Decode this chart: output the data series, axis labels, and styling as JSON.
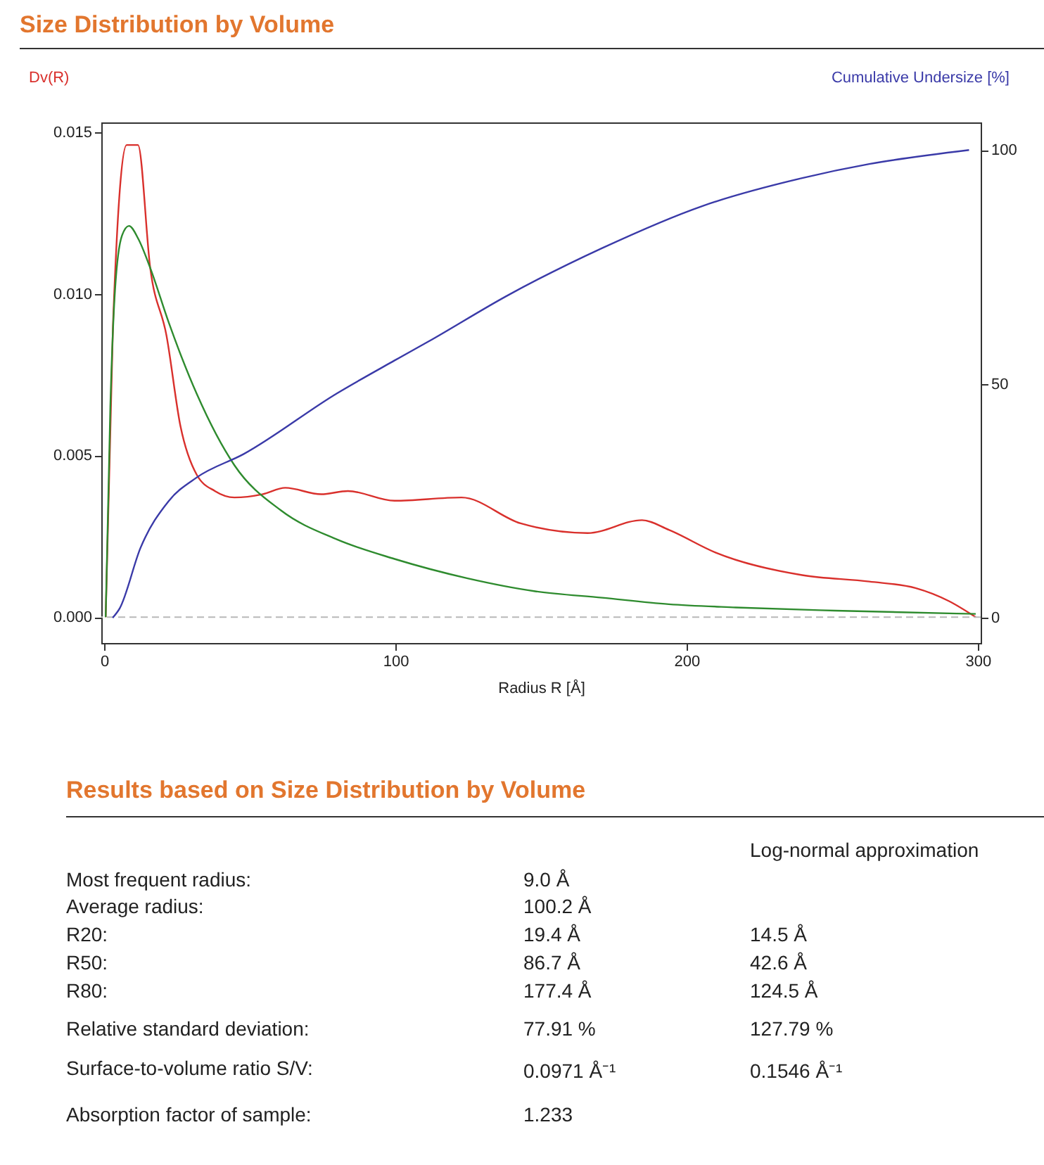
{
  "chart_data": [
    {
      "type": "line",
      "title": "Size Distribution by Volume",
      "xlabel": "Radius R [Å]",
      "ylabel": "Dv(R)",
      "y2label": "Cumulative Undersize [%]",
      "xlim": [
        -1,
        301
      ],
      "xticks": [
        0,
        100,
        200,
        300
      ],
      "ylim": [
        -0.0008,
        0.0153
      ],
      "yticks": [
        {
          "value": 0,
          "label": "0.000"
        },
        {
          "value": 0.005,
          "label": "0.005"
        },
        {
          "value": 0.01,
          "label": "0.010"
        },
        {
          "value": 0.015,
          "label": "0.015"
        }
      ],
      "y2lim": [
        -5.4,
        105.9
      ],
      "y2ticks": [
        0,
        50,
        100
      ],
      "grid": false,
      "ref_lines": [
        {
          "axis": "y",
          "value": 0,
          "color": "#b8b8b8",
          "line_style": "dashed"
        }
      ],
      "series": [
        {
          "color": "#d9302c",
          "x": [
            0.5,
            3,
            7.7,
            11.6,
            15.8,
            21.4,
            26.2,
            31.8,
            38,
            44.7,
            54.3,
            62.2,
            74.5,
            83.7,
            99.7,
            122.7,
            143,
            166,
            184.7,
            193.9,
            209.9,
            239.7,
            262.7,
            278.6,
            290,
            299.3
          ],
          "values": [
            0,
            0.009,
            0.0146,
            0.0146,
            0.0108,
            0.0087,
            0.0059,
            0.0044,
            0.0039,
            0.0037,
            0.0038,
            0.004,
            0.0038,
            0.0039,
            0.0036,
            0.0037,
            0.0029,
            0.0026,
            0.003,
            0.0027,
            0.002,
            0.0013,
            0.0011,
            0.0009,
            0.0005,
            0
          ]
        },
        {
          "color": "#2e8b2e",
          "x": [
            0.5,
            2.1,
            3.7,
            6.1,
            8.5,
            11.7,
            15.8,
            22.2,
            31.8,
            44.7,
            60.7,
            80,
            99.7,
            124.8,
            148,
            171,
            193.9,
            216.9,
            251,
            299.3
          ],
          "values": [
            0,
            0.0065,
            0.0101,
            0.0118,
            0.0121,
            0.0117,
            0.0108,
            0.0091,
            0.0069,
            0.0047,
            0.0033,
            0.0024,
            0.0018,
            0.0012,
            0.0008,
            0.0006,
            0.0004,
            0.0003,
            0.0002,
            0.0001
          ]
        },
        {
          "color": "#3a3aa8",
          "axis": "y2",
          "x": [
            2.9,
            5.3,
            12.5,
            22.2,
            31.8,
            47.9,
            80,
            99.7,
            111.2,
            138.8,
            170.9,
            205.3,
            239.7,
            262.7,
            297
          ],
          "values": [
            0,
            2,
            15,
            25,
            30,
            35,
            48,
            55,
            59,
            69,
            79,
            88,
            94,
            97,
            100
          ]
        }
      ]
    },
    {
      "type": "other",
      "title": "Results based on Size Distribution by Volume",
      "annotations": [
        "Log-normal approximation",
        "Most frequent radius:",
        "9.0 Å",
        "Average radius:",
        "100.2 Å",
        "R20:",
        "19.4 Å",
        "14.5 Å",
        "R50:",
        "86.7 Å",
        "42.6 Å",
        "R80:",
        "177.4 Å",
        "124.5 Å",
        "Relative standard deviation:",
        "77.91 %",
        "127.79 %",
        "Surface-to-volume ratio S/V:",
        "0.0971 Å⁻¹",
        "0.1546 Å⁻¹",
        "Absorption factor of sample:",
        "1.233"
      ]
    }
  ]
}
